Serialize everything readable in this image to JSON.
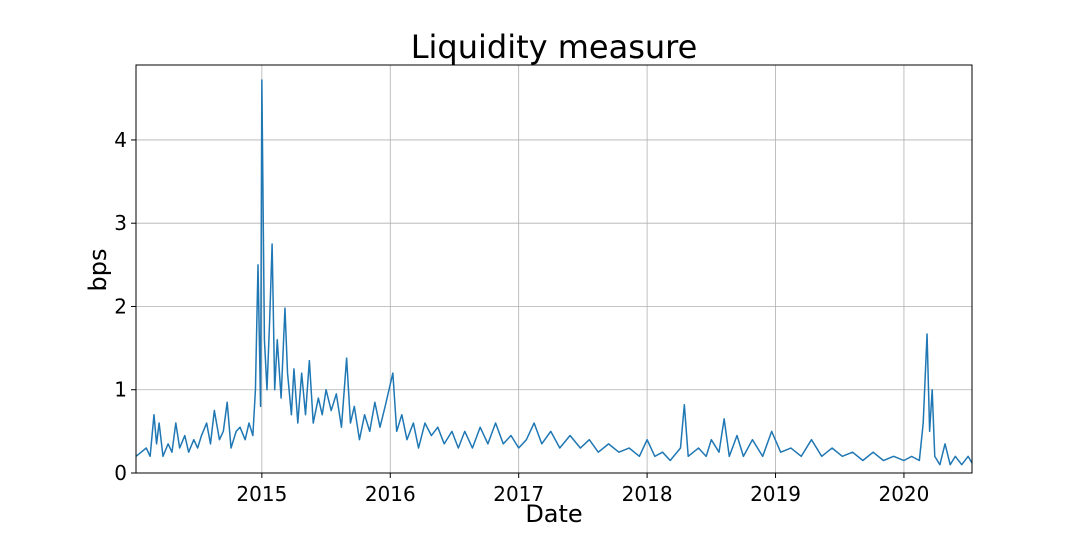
{
  "chart_data": {
    "type": "line",
    "title": "Liquidity measure",
    "xlabel": "Date",
    "ylabel": "bps",
    "x": [
      2014.02,
      2014.06,
      2014.1,
      2014.13,
      2014.16,
      2014.18,
      2014.2,
      2014.23,
      2014.27,
      2014.3,
      2014.33,
      2014.36,
      2014.4,
      2014.43,
      2014.47,
      2014.5,
      2014.53,
      2014.57,
      2014.6,
      2014.63,
      2014.67,
      2014.7,
      2014.73,
      2014.76,
      2014.8,
      2014.83,
      2014.87,
      2014.9,
      2014.93,
      2014.95,
      2014.97,
      2014.99,
      2015.0,
      2015.02,
      2015.04,
      2015.06,
      2015.08,
      2015.1,
      2015.12,
      2015.15,
      2015.18,
      2015.2,
      2015.23,
      2015.25,
      2015.28,
      2015.31,
      2015.34,
      2015.37,
      2015.4,
      2015.44,
      2015.47,
      2015.5,
      2015.54,
      2015.58,
      2015.62,
      2015.66,
      2015.69,
      2015.72,
      2015.76,
      2015.8,
      2015.84,
      2015.88,
      2015.92,
      2015.96,
      2016.02,
      2016.05,
      2016.09,
      2016.13,
      2016.18,
      2016.22,
      2016.27,
      2016.32,
      2016.37,
      2016.42,
      2016.48,
      2016.53,
      2016.58,
      2016.64,
      2016.7,
      2016.76,
      2016.82,
      2016.88,
      2016.94,
      2017.0,
      2017.06,
      2017.12,
      2017.18,
      2017.25,
      2017.32,
      2017.4,
      2017.48,
      2017.55,
      2017.62,
      2017.7,
      2017.78,
      2017.86,
      2017.94,
      2018.0,
      2018.06,
      2018.12,
      2018.18,
      2018.26,
      2018.29,
      2018.32,
      2018.4,
      2018.46,
      2018.5,
      2018.56,
      2018.6,
      2018.64,
      2018.7,
      2018.75,
      2018.82,
      2018.9,
      2018.97,
      2019.04,
      2019.12,
      2019.2,
      2019.28,
      2019.36,
      2019.44,
      2019.52,
      2019.6,
      2019.68,
      2019.76,
      2019.84,
      2019.92,
      2020.0,
      2020.06,
      2020.12,
      2020.15,
      2020.18,
      2020.2,
      2020.22,
      2020.24,
      2020.28,
      2020.32,
      2020.36,
      2020.4,
      2020.45,
      2020.5,
      2020.53
    ],
    "series": [
      {
        "color": "#1f77b4",
        "values": [
          0.2,
          0.25,
          0.3,
          0.2,
          0.7,
          0.35,
          0.6,
          0.2,
          0.35,
          0.25,
          0.6,
          0.3,
          0.45,
          0.25,
          0.4,
          0.3,
          0.45,
          0.6,
          0.35,
          0.75,
          0.4,
          0.5,
          0.85,
          0.3,
          0.5,
          0.55,
          0.4,
          0.6,
          0.45,
          1.0,
          2.5,
          0.8,
          4.72,
          1.6,
          1.0,
          1.8,
          2.75,
          1.0,
          1.6,
          0.9,
          1.98,
          1.2,
          0.7,
          1.25,
          0.6,
          1.2,
          0.7,
          1.35,
          0.6,
          0.9,
          0.7,
          1.0,
          0.75,
          0.95,
          0.55,
          1.38,
          0.6,
          0.8,
          0.4,
          0.7,
          0.5,
          0.85,
          0.55,
          0.8,
          1.2,
          0.5,
          0.7,
          0.4,
          0.6,
          0.3,
          0.6,
          0.45,
          0.55,
          0.35,
          0.5,
          0.3,
          0.5,
          0.3,
          0.55,
          0.35,
          0.6,
          0.35,
          0.45,
          0.3,
          0.4,
          0.6,
          0.35,
          0.5,
          0.3,
          0.45,
          0.3,
          0.4,
          0.25,
          0.35,
          0.25,
          0.3,
          0.2,
          0.4,
          0.2,
          0.25,
          0.15,
          0.3,
          0.82,
          0.2,
          0.3,
          0.2,
          0.4,
          0.25,
          0.65,
          0.2,
          0.45,
          0.2,
          0.4,
          0.2,
          0.5,
          0.25,
          0.3,
          0.2,
          0.4,
          0.2,
          0.3,
          0.2,
          0.25,
          0.15,
          0.25,
          0.15,
          0.2,
          0.15,
          0.2,
          0.15,
          0.6,
          1.67,
          0.5,
          1.0,
          0.2,
          0.1,
          0.35,
          0.1,
          0.2,
          0.1,
          0.2,
          0.12
        ]
      }
    ],
    "xlim": [
      2014.02,
      2020.53
    ],
    "xticks": [
      2015,
      2016,
      2017,
      2018,
      2019,
      2020
    ],
    "ylim": [
      0,
      4.9
    ],
    "yticks": [
      0,
      1,
      2,
      3,
      4
    ],
    "grid": true
  }
}
